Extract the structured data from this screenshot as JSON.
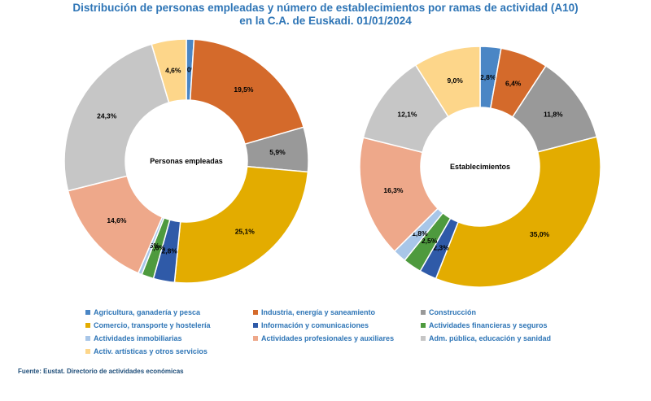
{
  "title": {
    "line1": "Distribución de personas empleadas y número de establecimientos por ramas de actividad (A10)",
    "line2": "en la C.A. de Euskadi. 01/01/2024"
  },
  "source": "Fuente: Eustat. Directorio de actividades económicas",
  "chart_data": {
    "type": "pie",
    "variant": "donut",
    "categories": [
      "Agricultura, ganadería y pesca",
      "Industria, energía y saneamiento",
      "Construcción",
      "Comercio, transporte y hostelería",
      "Información y comunicaciones",
      "Actividades financieras y seguros",
      "Actividades inmobiliarias",
      "Actividades profesionales y auxiliares",
      "Adm. pública, educación y sanidad",
      "Activ. artísticas y otros servicios"
    ],
    "colors": [
      "#4a86c5",
      "#d46a2b",
      "#999999",
      "#e3ac00",
      "#2f5aa8",
      "#4e9a3e",
      "#a8c6e8",
      "#eea88a",
      "#c6c6c6",
      "#fdd68a"
    ],
    "series": [
      {
        "name": "Personas empleadas",
        "values": [
          1.0,
          19.5,
          5.9,
          25.1,
          2.8,
          1.6,
          0.5,
          14.6,
          24.3,
          4.6
        ],
        "labels": [
          "1,0%",
          "19,5%",
          "5,9%",
          "25,1%",
          "2,8%",
          "1,6%",
          "0,5%",
          "14,6%",
          "24,3%",
          "4,6%"
        ]
      },
      {
        "name": "Establecimientos",
        "values": [
          2.8,
          6.4,
          11.8,
          35.0,
          2.3,
          2.5,
          1.8,
          16.3,
          12.1,
          9.0
        ],
        "labels": [
          "2,8%",
          "6,4%",
          "11,8%",
          "35,0%",
          "2,3%",
          "2,5%",
          "1,8%",
          "16,3%",
          "12,1%",
          "9,0%"
        ]
      }
    ],
    "legend_position": "bottom"
  }
}
